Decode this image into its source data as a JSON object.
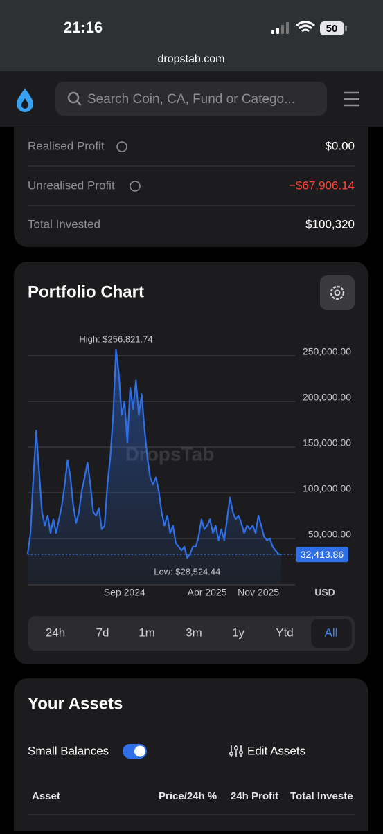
{
  "status_bar": {
    "time": "21:16",
    "battery": "50"
  },
  "browser": {
    "url": "dropstab.com"
  },
  "header": {
    "search_placeholder": "Search Coin, CA, Fund or Catego..."
  },
  "summary": {
    "rows": [
      {
        "label": "Realised Profit",
        "value": "$0.00"
      },
      {
        "label": "Unrealised Profit",
        "value": "−$67,906.14"
      },
      {
        "label": "Total Invested",
        "value": "$100,320"
      }
    ]
  },
  "portfolio_chart": {
    "type": "area",
    "title": "Portfolio Chart",
    "watermark": "DropsTab",
    "high_label": "High: $256,821.74",
    "low_label": "Low: $28,524.44",
    "current_label": "32,413.86",
    "currency": "USD",
    "color": "#2f6fe8",
    "values": [
      33000,
      56000,
      117000,
      168000,
      124000,
      79000,
      64000,
      75000,
      56000,
      71000,
      56000,
      71000,
      86000,
      109000,
      136000,
      117000,
      86000,
      67000,
      79000,
      102000,
      117000,
      133000,
      109000,
      79000,
      75000,
      83000,
      60000,
      64000,
      109000,
      139000,
      185000,
      256821.74,
      230000,
      185000,
      200000,
      155000,
      215000,
      192000,
      223000,
      185000,
      208000,
      170000,
      139000,
      117000,
      109000,
      117000,
      102000,
      79000,
      64000,
      75000,
      56000,
      64000,
      45000,
      41000,
      37000,
      41000,
      28524.44,
      33000,
      41000,
      41000,
      52000,
      71000,
      60000,
      64000,
      71000,
      56000,
      64000,
      48000,
      60000,
      48000,
      71000,
      95000,
      79000,
      71000,
      75000,
      67000,
      56000,
      64000,
      60000,
      64000,
      56000,
      75000,
      64000,
      52000,
      48000,
      50000,
      41000,
      37000,
      33000,
      32413.86
    ],
    "xlim": [
      0,
      89
    ],
    "xticks": [
      {
        "value": 34,
        "label": "Sep 2024"
      },
      {
        "value": 63,
        "label": "Apr 2025"
      },
      {
        "value": 81,
        "label": "Nov 2025"
      }
    ],
    "ylim": [
      0,
      275000
    ],
    "yticks": [
      {
        "value": 50000,
        "label": "50,000.00"
      },
      {
        "value": 100000,
        "label": "100,000.00"
      },
      {
        "value": 150000,
        "label": "150,000.00"
      },
      {
        "value": 200000,
        "label": "200,000.00"
      },
      {
        "value": 250000,
        "label": "250,000.00"
      }
    ],
    "grid": true
  },
  "ranges": [
    "24h",
    "7d",
    "1m",
    "3m",
    "1y",
    "Ytd",
    "All"
  ],
  "assets": {
    "title": "Your Assets",
    "small_balances": "Small Balances",
    "edit": "Edit Assets",
    "columns": [
      "Asset",
      "Price/24h %",
      "24h Profit",
      "Total Investe"
    ]
  }
}
